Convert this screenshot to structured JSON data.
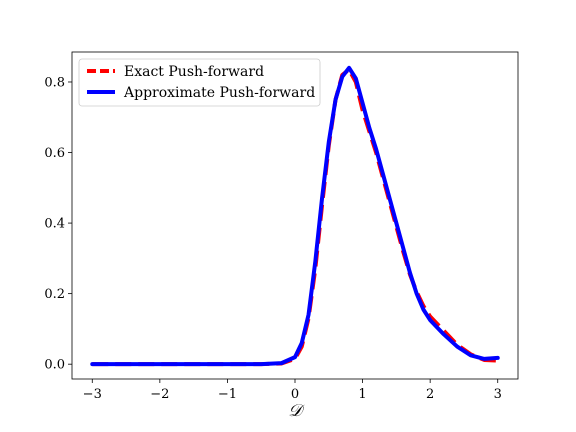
{
  "chart_data": {
    "type": "line",
    "xlabel": "𝒟",
    "ylabel": "",
    "xlim": [
      -3.3,
      3.3
    ],
    "ylim": [
      -0.042,
      0.885
    ],
    "xticks": [
      "−3",
      "−2",
      "−1",
      "0",
      "1",
      "2",
      "3"
    ],
    "xtick_values": [
      -3,
      -2,
      -1,
      0,
      1,
      2,
      3
    ],
    "yticks": [
      "0.0",
      "0.2",
      "0.4",
      "0.6",
      "0.8"
    ],
    "ytick_values": [
      0,
      0.2,
      0.4,
      0.6,
      0.8
    ],
    "grid": false,
    "legend_position": "upper-left",
    "series": [
      {
        "name": "Exact Push-forward",
        "color": "#ff0000",
        "style": "dashed",
        "x": [
          -3,
          -2.5,
          -2,
          -1.5,
          -1,
          -0.5,
          -0.2,
          0,
          0.1,
          0.2,
          0.3,
          0.4,
          0.5,
          0.6,
          0.7,
          0.8,
          0.9,
          1.0,
          1.1,
          1.2,
          1.3,
          1.4,
          1.5,
          1.6,
          1.7,
          1.8,
          1.9,
          2.0,
          2.2,
          2.4,
          2.6,
          2.8,
          3.0
        ],
        "values": [
          0.0,
          0.0,
          0.0,
          0.0,
          0.0,
          0.0,
          0.002,
          0.015,
          0.05,
          0.13,
          0.27,
          0.45,
          0.62,
          0.75,
          0.82,
          0.835,
          0.8,
          0.72,
          0.66,
          0.6,
          0.53,
          0.46,
          0.39,
          0.32,
          0.255,
          0.205,
          0.165,
          0.135,
          0.095,
          0.055,
          0.028,
          0.012,
          0.01
        ]
      },
      {
        "name": "Approximate Push-forward",
        "color": "#0000ff",
        "style": "solid",
        "x": [
          -3,
          -2.5,
          -2,
          -1.5,
          -1,
          -0.5,
          -0.2,
          0,
          0.1,
          0.2,
          0.3,
          0.4,
          0.5,
          0.6,
          0.7,
          0.8,
          0.9,
          1.0,
          1.1,
          1.2,
          1.3,
          1.4,
          1.5,
          1.6,
          1.7,
          1.8,
          1.9,
          2.0,
          2.2,
          2.4,
          2.6,
          2.8,
          3.0
        ],
        "values": [
          0.0,
          0.0,
          0.0,
          0.0,
          0.0,
          0.0,
          0.003,
          0.02,
          0.06,
          0.14,
          0.29,
          0.47,
          0.63,
          0.75,
          0.815,
          0.84,
          0.81,
          0.74,
          0.67,
          0.61,
          0.54,
          0.47,
          0.4,
          0.33,
          0.26,
          0.2,
          0.155,
          0.125,
          0.085,
          0.05,
          0.025,
          0.015,
          0.018
        ]
      }
    ]
  }
}
